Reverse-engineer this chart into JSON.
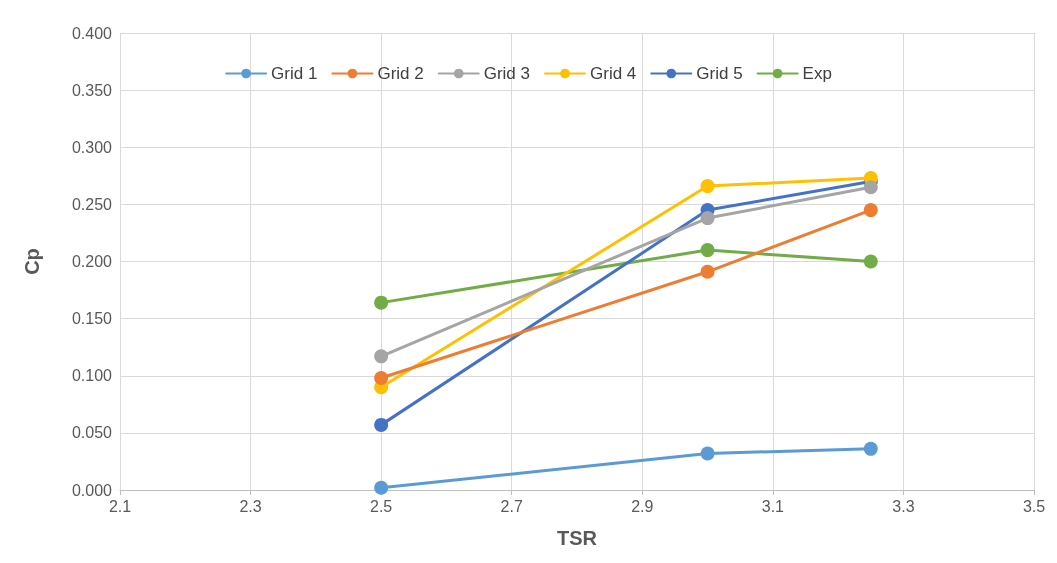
{
  "chart_data": {
    "type": "line",
    "xlabel": "TSR",
    "ylabel": "Cp",
    "x": [
      2.5,
      3.0,
      3.25
    ],
    "series": [
      {
        "name": "Grid 1",
        "color": "#5b9bd5",
        "values": [
          0.002,
          0.032,
          0.036
        ]
      },
      {
        "name": "Grid 2",
        "color": "#ed7d31",
        "values": [
          0.098,
          0.191,
          0.245
        ]
      },
      {
        "name": "Grid 3",
        "color": "#a5a5a5",
        "values": [
          0.117,
          0.238,
          0.265
        ]
      },
      {
        "name": "Grid 4",
        "color": "#ffc000",
        "values": [
          0.09,
          0.266,
          0.273
        ]
      },
      {
        "name": "Grid 5",
        "color": "#4472c4",
        "values": [
          0.057,
          0.245,
          0.27
        ]
      },
      {
        "name": "Exp",
        "color": "#70ad47",
        "values": [
          0.164,
          0.21,
          0.2
        ]
      }
    ],
    "xlim": [
      2.1,
      3.5
    ],
    "xticks": [
      2.1,
      2.3,
      2.5,
      2.7,
      2.9,
      3.1,
      3.3,
      3.5
    ],
    "ylim": [
      0,
      0.4
    ],
    "yticks": [
      {
        "value": 0,
        "label": "0.000"
      },
      {
        "value": 0.05,
        "label": "0.050"
      },
      {
        "value": 0.1,
        "label": "0.100"
      },
      {
        "value": 0.15,
        "label": "0.150"
      },
      {
        "value": 0.2,
        "label": "0.200"
      },
      {
        "value": 0.25,
        "label": "0.250"
      },
      {
        "value": 0.3,
        "label": "0.300"
      },
      {
        "value": 0.35,
        "label": "0.350"
      },
      {
        "value": 0.4,
        "label": "0.400"
      }
    ],
    "grid": true,
    "legend": "top",
    "marker": "circle",
    "line_style": "solid"
  }
}
